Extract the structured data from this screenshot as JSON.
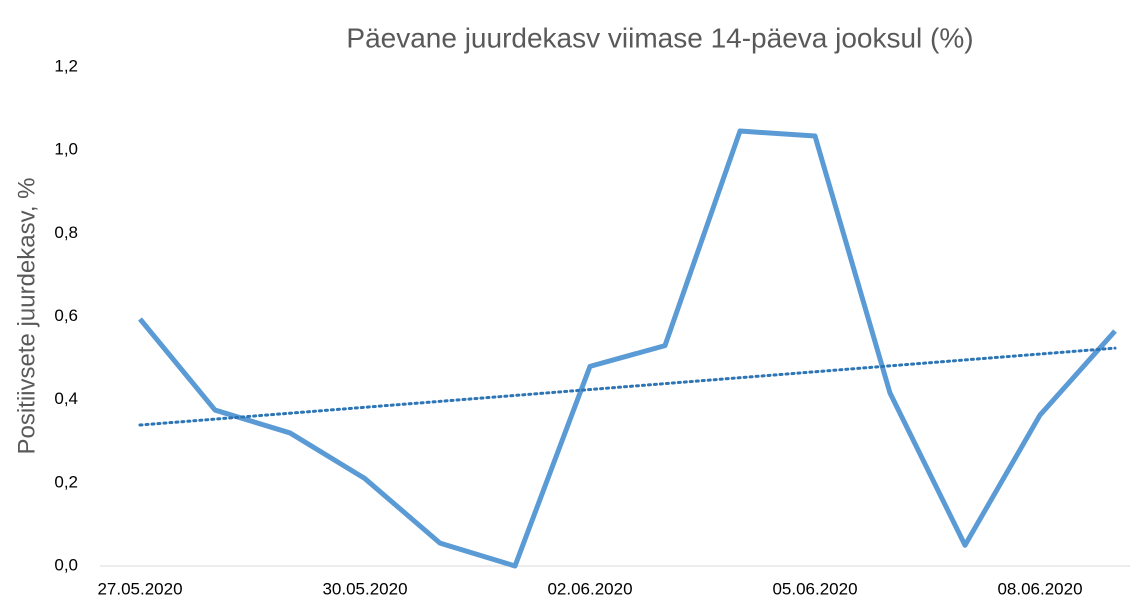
{
  "chart_data": {
    "type": "line",
    "title": "Päevane juurdekasv viimase 14-päeva jooksul (%)",
    "y_label": "Positiivsete juurdekasv, %",
    "categories": [
      "27.05.2020",
      null,
      null,
      "30.05.2020",
      null,
      null,
      "02.06.2020",
      null,
      null,
      "05.06.2020",
      null,
      null,
      "08.06.2020",
      null
    ],
    "series": [
      {
        "color": "#5b9bd5",
        "values": [
          0.594,
          0.375,
          0.32,
          0.21,
          0.055,
          0.0,
          0.48,
          0.53,
          1.046,
          1.034,
          0.416,
          0.05,
          0.363,
          0.565
        ]
      }
    ],
    "trendline": {
      "color": "#2e75b6",
      "values": [
        0.339,
        0.524
      ]
    },
    "ylim": [
      0,
      1.2
    ],
    "yticks": [
      {
        "value": 0,
        "label": "0,0"
      },
      {
        "value": 0.2,
        "label": "0,2"
      },
      {
        "value": 0.4,
        "label": "0,4"
      },
      {
        "value": 0.6,
        "label": "0,6"
      },
      {
        "value": 0.8,
        "label": "0,8"
      },
      {
        "value": 1.0,
        "label": "1,0"
      },
      {
        "value": 1.2,
        "label": "1,2"
      }
    ],
    "grid": false
  }
}
